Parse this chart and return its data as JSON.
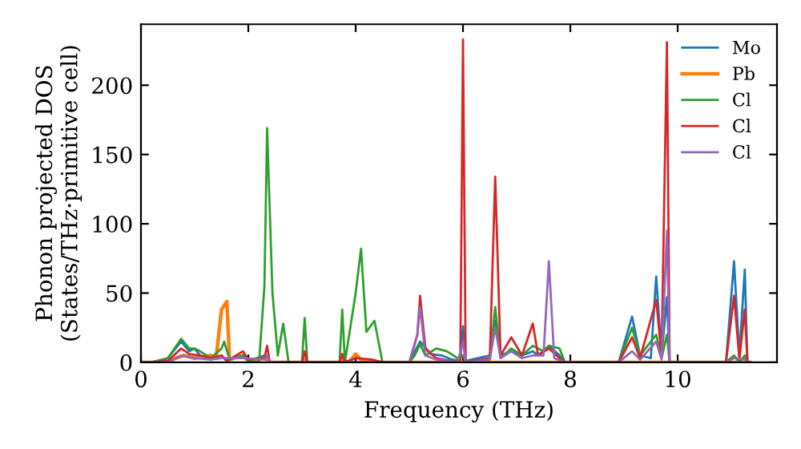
{
  "chart_data": {
    "type": "line",
    "xlabel": "Frequency (THz)",
    "ylabel": "Phonon projected DOS\n(States/THz·primitive cell)",
    "xlim": [
      0,
      11.85
    ],
    "ylim": [
      0,
      244
    ],
    "xticks": [
      0,
      2,
      4,
      6,
      8,
      10
    ],
    "yticks": [
      0,
      50,
      100,
      150,
      200
    ],
    "grid": false,
    "legend": "top right",
    "marker": "none",
    "line_style": "solid",
    "series": [
      {
        "name": "Mo",
        "color": "#1f77b4",
        "x": [
          0,
          0.2,
          0.5,
          0.75,
          0.9,
          1.0,
          1.1,
          1.3,
          1.5,
          1.6,
          1.9,
          2.0,
          2.3,
          2.4,
          5.0,
          5.2,
          5.4,
          5.6,
          5.8,
          5.95,
          6.0,
          6.05,
          6.5,
          6.6,
          6.7,
          6.9,
          7.1,
          7.3,
          7.4,
          7.6,
          7.8,
          7.9,
          8.9,
          9.15,
          9.3,
          9.5,
          9.6,
          9.7,
          9.8,
          9.85,
          10.9,
          11.05,
          11.15,
          11.25,
          11.3,
          11.35
        ],
        "values": [
          0,
          0,
          3,
          15,
          8,
          10,
          5,
          2,
          5,
          1,
          5,
          1,
          5,
          0,
          0,
          15,
          6,
          5,
          2,
          1,
          26,
          1,
          5,
          30,
          5,
          8,
          5,
          8,
          5,
          12,
          5,
          0,
          0,
          33,
          5,
          3,
          62,
          5,
          47,
          0,
          0,
          73,
          5,
          67,
          0,
          0
        ]
      },
      {
        "name": "Pb",
        "color": "#ff7f0e",
        "x": [
          0,
          0.2,
          0.5,
          0.8,
          1.0,
          1.3,
          1.4,
          1.5,
          1.6,
          1.65,
          1.9,
          2.0,
          2.3,
          2.4,
          3.0,
          3.05,
          3.1,
          3.7,
          3.75,
          3.8,
          3.9,
          4.0,
          4.1,
          4.3,
          4.5,
          11.35
        ],
        "values": [
          0,
          0,
          1,
          5,
          3,
          5,
          3,
          38,
          44,
          2,
          5,
          1,
          3,
          0,
          0,
          2,
          0,
          0,
          3,
          0,
          1,
          6,
          2,
          1,
          0,
          0
        ]
      },
      {
        "name": "Cl",
        "color": "#2ca02c",
        "x": [
          0,
          0.2,
          0.5,
          0.75,
          0.9,
          1.0,
          1.1,
          1.3,
          1.5,
          1.55,
          1.65,
          1.9,
          2.0,
          2.2,
          2.3,
          2.35,
          2.45,
          2.55,
          2.65,
          2.75,
          3.0,
          3.05,
          3.1,
          3.7,
          3.75,
          3.8,
          4.0,
          4.1,
          4.2,
          4.35,
          4.5,
          5.0,
          5.1,
          5.2,
          5.3,
          5.5,
          5.7,
          5.9,
          6.0,
          6.05,
          6.5,
          6.6,
          6.7,
          6.9,
          7.1,
          7.3,
          7.5,
          7.6,
          7.8,
          7.9,
          8.9,
          9.15,
          9.3,
          9.6,
          9.7,
          9.8,
          9.85,
          10.9,
          11.05,
          11.15,
          11.25,
          11.3,
          11.35
        ],
        "values": [
          0,
          0,
          3,
          17,
          10,
          10,
          8,
          3,
          10,
          15,
          2,
          5,
          1,
          0,
          55,
          169,
          50,
          5,
          28,
          0,
          0,
          32,
          0,
          0,
          38,
          0,
          50,
          82,
          22,
          30,
          0,
          0,
          5,
          13,
          5,
          10,
          8,
          3,
          5,
          0,
          2,
          40,
          3,
          10,
          5,
          12,
          8,
          12,
          10,
          0,
          0,
          25,
          5,
          20,
          3,
          20,
          0,
          0,
          5,
          0,
          5,
          0,
          0
        ]
      },
      {
        "name": "Cl",
        "color": "#d62728",
        "x": [
          0,
          0.2,
          0.5,
          0.75,
          0.9,
          1.1,
          1.3,
          1.5,
          1.6,
          1.9,
          2.0,
          2.3,
          2.35,
          2.4,
          3.0,
          3.05,
          3.1,
          3.7,
          3.75,
          3.8,
          4.0,
          4.3,
          4.5,
          5.0,
          5.15,
          5.2,
          5.3,
          5.5,
          5.9,
          5.95,
          6.0,
          6.05,
          6.5,
          6.6,
          6.7,
          6.9,
          7.1,
          7.3,
          7.4,
          7.6,
          7.8,
          7.9,
          8.9,
          9.15,
          9.3,
          9.6,
          9.7,
          9.8,
          9.85,
          10.9,
          11.05,
          11.15,
          11.25,
          11.3,
          11.35
        ],
        "values": [
          0,
          0,
          1,
          10,
          6,
          5,
          3,
          5,
          1,
          8,
          2,
          3,
          12,
          0,
          0,
          8,
          0,
          0,
          6,
          0,
          3,
          2,
          0,
          0,
          20,
          48,
          10,
          3,
          0,
          2,
          233,
          0,
          3,
          134,
          5,
          18,
          5,
          28,
          5,
          10,
          3,
          0,
          0,
          18,
          3,
          45,
          5,
          231,
          0,
          0,
          48,
          2,
          38,
          0,
          0
        ]
      },
      {
        "name": "Cl",
        "color": "#9467bd",
        "x": [
          0,
          0.2,
          0.5,
          0.75,
          1.0,
          1.3,
          1.5,
          1.9,
          2.3,
          2.35,
          2.4,
          5.0,
          5.15,
          5.2,
          5.3,
          5.5,
          5.9,
          6.0,
          6.05,
          6.5,
          6.6,
          6.7,
          6.9,
          7.1,
          7.3,
          7.5,
          7.6,
          7.7,
          7.9,
          8.9,
          9.15,
          9.3,
          9.6,
          9.7,
          9.8,
          9.85,
          10.9,
          11.05,
          11.25,
          11.3,
          11.35
        ],
        "values": [
          0,
          0,
          0,
          5,
          3,
          2,
          3,
          3,
          2,
          5,
          0,
          0,
          20,
          40,
          5,
          2,
          0,
          15,
          0,
          2,
          25,
          3,
          8,
          3,
          5,
          5,
          73,
          3,
          0,
          0,
          8,
          2,
          15,
          2,
          95,
          0,
          0,
          3,
          2,
          0,
          0
        ]
      }
    ]
  }
}
